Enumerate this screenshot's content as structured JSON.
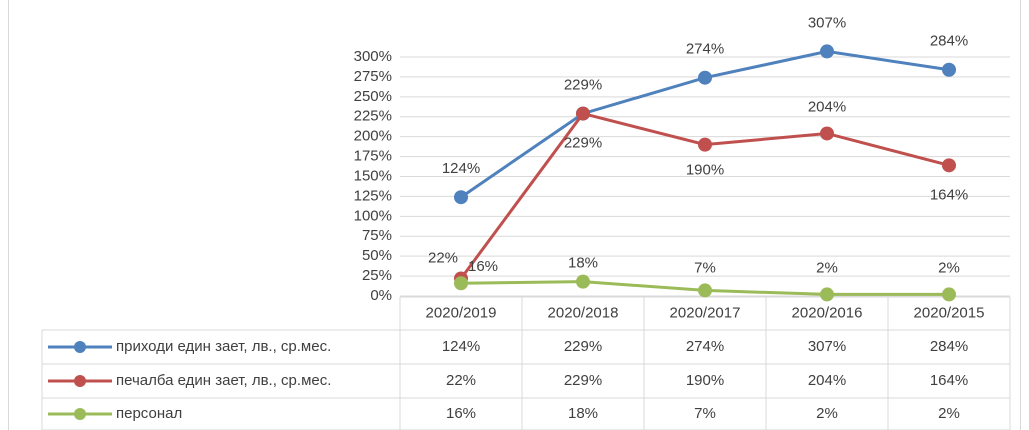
{
  "chart_data": {
    "type": "line",
    "categories": [
      "2020/2019",
      "2020/2018",
      "2020/2017",
      "2020/2016",
      "2020/2015"
    ],
    "series": [
      {
        "name": "приходи един зает, лв., ср.мес.",
        "color": "#4f81bd",
        "values": [
          124,
          229,
          274,
          307,
          284
        ],
        "value_labels": [
          "124%",
          "229%",
          "274%",
          "307%",
          "284%"
        ]
      },
      {
        "name": "печалба един зает, лв., ср.мес.",
        "color": "#c0504d",
        "values": [
          22,
          229,
          190,
          204,
          164
        ],
        "value_labels": [
          "22%",
          "229%",
          "190%",
          "204%",
          "164%"
        ]
      },
      {
        "name": "персонал",
        "color": "#9bbb59",
        "values": [
          16,
          18,
          7,
          2,
          2
        ],
        "value_labels": [
          "16%",
          "18%",
          "7%",
          "2%",
          "2%"
        ]
      }
    ],
    "ylim": [
      0,
      300
    ],
    "yticks": [
      {
        "value": 0,
        "label": "0%"
      },
      {
        "value": 25,
        "label": "25%"
      },
      {
        "value": 50,
        "label": "50%"
      },
      {
        "value": 75,
        "label": "75%"
      },
      {
        "value": 100,
        "label": "100%"
      },
      {
        "value": 125,
        "label": "125%"
      },
      {
        "value": 150,
        "label": "150%"
      },
      {
        "value": 175,
        "label": "175%"
      },
      {
        "value": 200,
        "label": "200%"
      },
      {
        "value": 225,
        "label": "225%"
      },
      {
        "value": 250,
        "label": "250%"
      },
      {
        "value": 275,
        "label": "275%"
      },
      {
        "value": 300,
        "label": "300%"
      }
    ],
    "grid": true
  }
}
